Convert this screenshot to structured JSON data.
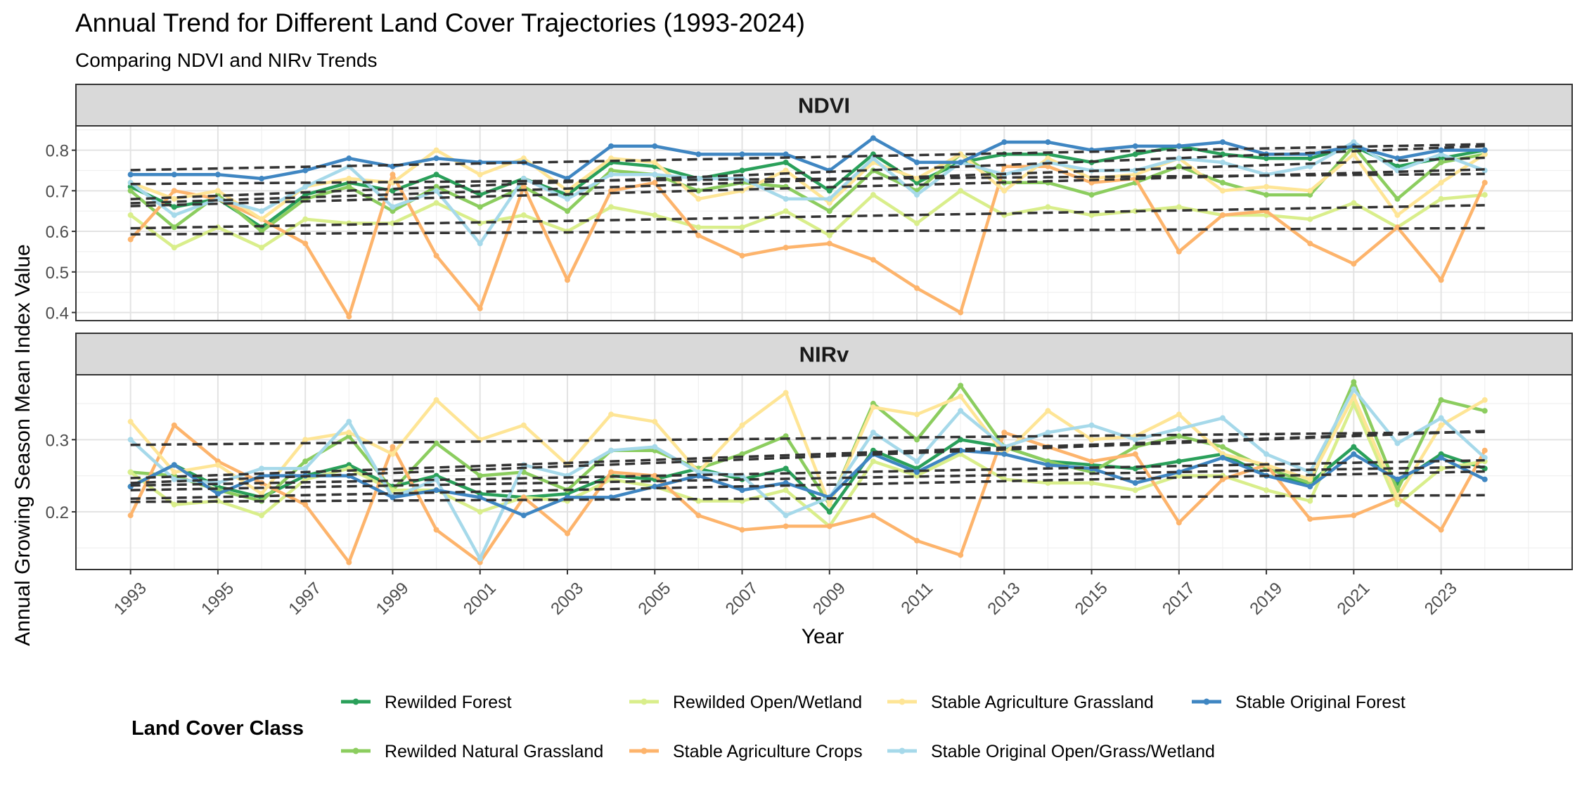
{
  "title": "Annual Trend for Different Land Cover Trajectories (1993-2024)",
  "subtitle": "Comparing NDVI and NIRv Trends",
  "xlabel": "Year",
  "ylabel": "Annual Growing Season Mean Index Value",
  "legend": {
    "title": "Land Cover Class",
    "position": "bottom"
  },
  "colors": {
    "Rewilded Forest": "#2aa05a",
    "Rewilded Natural Grassland": "#8ccd5f",
    "Rewilded Open/Wetland": "#d9ee8b",
    "Stable Agriculture Crops": "#fdb46c",
    "Stable Agriculture Grassland": "#fee596",
    "Stable Original Open/Grass/Wetland": "#a6d9ea",
    "Stable Original Forest": "#3f86c2",
    "trend": "#333333"
  },
  "chart_data": [
    {
      "type": "line",
      "panel": "NDVI",
      "x": [
        1993,
        1994,
        1995,
        1996,
        1997,
        1998,
        1999,
        2000,
        2001,
        2002,
        2003,
        2004,
        2005,
        2006,
        2007,
        2008,
        2009,
        2010,
        2011,
        2012,
        2013,
        2014,
        2015,
        2016,
        2017,
        2018,
        2019,
        2020,
        2021,
        2022,
        2023,
        2024
      ],
      "x_ticks": [
        "1993",
        "1995",
        "1997",
        "1999",
        "2001",
        "2003",
        "2005",
        "2007",
        "2009",
        "2011",
        "2013",
        "2015",
        "2017",
        "2019",
        "2021",
        "2023"
      ],
      "ylim": [
        0.38,
        0.86
      ],
      "y_ticks": [
        "0.4",
        "0.5",
        "0.6",
        "0.7",
        "0.8"
      ],
      "trend_lines": "dashed linear fit per series",
      "series": [
        {
          "name": "Rewilded Forest",
          "values": [
            0.71,
            0.66,
            0.68,
            0.61,
            0.69,
            0.72,
            0.7,
            0.74,
            0.69,
            0.73,
            0.69,
            0.77,
            0.76,
            0.73,
            0.75,
            0.77,
            0.7,
            0.79,
            0.72,
            0.77,
            0.79,
            0.79,
            0.77,
            0.79,
            0.81,
            0.79,
            0.78,
            0.78,
            0.81,
            0.76,
            0.78,
            0.8
          ]
        },
        {
          "name": "Rewilded Natural Grassland",
          "values": [
            0.7,
            0.61,
            0.69,
            0.6,
            0.68,
            0.71,
            0.65,
            0.71,
            0.66,
            0.71,
            0.65,
            0.75,
            0.74,
            0.7,
            0.72,
            0.71,
            0.65,
            0.75,
            0.7,
            0.79,
            0.72,
            0.72,
            0.69,
            0.72,
            0.76,
            0.72,
            0.69,
            0.69,
            0.81,
            0.68,
            0.77,
            0.79
          ]
        },
        {
          "name": "Rewilded Open/Wetland",
          "values": [
            0.64,
            0.56,
            0.61,
            0.56,
            0.63,
            0.62,
            0.62,
            0.67,
            0.62,
            0.64,
            0.6,
            0.66,
            0.64,
            0.61,
            0.61,
            0.65,
            0.59,
            0.69,
            0.62,
            0.7,
            0.64,
            0.66,
            0.64,
            0.65,
            0.66,
            0.64,
            0.64,
            0.63,
            0.67,
            0.61,
            0.68,
            0.69
          ]
        },
        {
          "name": "Stable Agriculture Crops",
          "values": [
            0.58,
            0.7,
            0.68,
            0.63,
            0.57,
            0.39,
            0.74,
            0.54,
            0.41,
            0.71,
            0.48,
            0.7,
            0.72,
            0.59,
            0.54,
            0.56,
            0.57,
            0.53,
            0.46,
            0.4,
            0.76,
            0.76,
            0.72,
            0.73,
            0.55,
            0.64,
            0.65,
            0.57,
            0.52,
            0.61,
            0.48,
            0.72
          ]
        },
        {
          "name": "Stable Agriculture Grassland",
          "values": [
            0.72,
            0.68,
            0.7,
            0.63,
            0.71,
            0.73,
            0.72,
            0.8,
            0.74,
            0.78,
            0.7,
            0.78,
            0.77,
            0.68,
            0.7,
            0.75,
            0.67,
            0.77,
            0.73,
            0.79,
            0.7,
            0.78,
            0.73,
            0.74,
            0.78,
            0.7,
            0.71,
            0.7,
            0.79,
            0.64,
            0.72,
            0.79
          ]
        },
        {
          "name": "Stable Original Open/Grass/Wetland",
          "values": [
            0.72,
            0.64,
            0.68,
            0.65,
            0.71,
            0.76,
            0.66,
            0.7,
            0.57,
            0.73,
            0.68,
            0.74,
            0.74,
            0.73,
            0.73,
            0.68,
            0.68,
            0.78,
            0.69,
            0.77,
            0.74,
            0.77,
            0.75,
            0.75,
            0.78,
            0.77,
            0.74,
            0.76,
            0.82,
            0.75,
            0.79,
            0.75
          ]
        },
        {
          "name": "Stable Original Forest",
          "values": [
            0.74,
            0.74,
            0.74,
            0.73,
            0.75,
            0.78,
            0.76,
            0.78,
            0.77,
            0.77,
            0.73,
            0.81,
            0.81,
            0.79,
            0.79,
            0.79,
            0.75,
            0.83,
            0.77,
            0.77,
            0.82,
            0.82,
            0.8,
            0.81,
            0.81,
            0.82,
            0.79,
            0.79,
            0.81,
            0.78,
            0.8,
            0.8
          ]
        }
      ]
    },
    {
      "type": "line",
      "panel": "NIRv",
      "x": [
        1993,
        1994,
        1995,
        1996,
        1997,
        1998,
        1999,
        2000,
        2001,
        2002,
        2003,
        2004,
        2005,
        2006,
        2007,
        2008,
        2009,
        2010,
        2011,
        2012,
        2013,
        2014,
        2015,
        2016,
        2017,
        2018,
        2019,
        2020,
        2021,
        2022,
        2023,
        2024
      ],
      "x_ticks": [
        "1993",
        "1995",
        "1997",
        "1999",
        "2001",
        "2003",
        "2005",
        "2007",
        "2009",
        "2011",
        "2013",
        "2015",
        "2017",
        "2019",
        "2021",
        "2023"
      ],
      "ylim": [
        0.12,
        0.39
      ],
      "y_ticks": [
        "0.2",
        "0.3"
      ],
      "trend_lines": "dashed linear fit per series",
      "series": [
        {
          "name": "Rewilded Forest",
          "values": [
            0.235,
            0.265,
            0.235,
            0.22,
            0.25,
            0.265,
            0.235,
            0.25,
            0.225,
            0.22,
            0.225,
            0.25,
            0.245,
            0.26,
            0.245,
            0.26,
            0.2,
            0.285,
            0.26,
            0.3,
            0.29,
            0.27,
            0.265,
            0.26,
            0.27,
            0.28,
            0.25,
            0.24,
            0.29,
            0.24,
            0.28,
            0.26
          ]
        },
        {
          "name": "Rewilded Natural Grassland",
          "values": [
            0.255,
            0.25,
            0.23,
            0.215,
            0.27,
            0.305,
            0.23,
            0.295,
            0.25,
            0.255,
            0.23,
            0.285,
            0.285,
            0.26,
            0.28,
            0.305,
            0.21,
            0.35,
            0.3,
            0.375,
            0.29,
            0.27,
            0.255,
            0.29,
            0.305,
            0.29,
            0.26,
            0.24,
            0.38,
            0.23,
            0.355,
            0.34
          ]
        },
        {
          "name": "Rewilded Open/Wetland",
          "values": [
            0.255,
            0.21,
            0.215,
            0.195,
            0.245,
            0.26,
            0.23,
            0.23,
            0.2,
            0.22,
            0.215,
            0.245,
            0.235,
            0.215,
            0.215,
            0.23,
            0.18,
            0.27,
            0.25,
            0.28,
            0.245,
            0.24,
            0.24,
            0.23,
            0.25,
            0.25,
            0.23,
            0.215,
            0.35,
            0.21,
            0.26,
            0.27
          ]
        },
        {
          "name": "Stable Agriculture Crops",
          "values": [
            0.195,
            0.32,
            0.27,
            0.24,
            0.21,
            0.13,
            0.29,
            0.175,
            0.13,
            0.22,
            0.17,
            0.255,
            0.25,
            0.195,
            0.175,
            0.18,
            0.18,
            0.195,
            0.16,
            0.14,
            0.31,
            0.29,
            0.27,
            0.28,
            0.185,
            0.245,
            0.265,
            0.19,
            0.195,
            0.22,
            0.175,
            0.285
          ]
        },
        {
          "name": "Stable Agriculture Grassland",
          "values": [
            0.325,
            0.255,
            0.265,
            0.225,
            0.3,
            0.31,
            0.28,
            0.355,
            0.3,
            0.32,
            0.265,
            0.335,
            0.325,
            0.255,
            0.32,
            0.365,
            0.21,
            0.345,
            0.335,
            0.36,
            0.28,
            0.34,
            0.3,
            0.305,
            0.335,
            0.28,
            0.265,
            0.245,
            0.36,
            0.22,
            0.32,
            0.355
          ]
        },
        {
          "name": "Stable Original Open/Grass/Wetland",
          "values": [
            0.3,
            0.245,
            0.24,
            0.26,
            0.26,
            0.325,
            0.22,
            0.245,
            0.135,
            0.265,
            0.25,
            0.285,
            0.29,
            0.255,
            0.25,
            0.195,
            0.22,
            0.31,
            0.27,
            0.34,
            0.29,
            0.31,
            0.32,
            0.3,
            0.315,
            0.33,
            0.28,
            0.255,
            0.37,
            0.295,
            0.33,
            0.275
          ]
        },
        {
          "name": "Stable Original Forest",
          "values": [
            0.235,
            0.265,
            0.225,
            0.25,
            0.25,
            0.25,
            0.22,
            0.23,
            0.22,
            0.195,
            0.22,
            0.22,
            0.235,
            0.25,
            0.23,
            0.24,
            0.22,
            0.28,
            0.255,
            0.285,
            0.28,
            0.265,
            0.26,
            0.24,
            0.255,
            0.275,
            0.25,
            0.235,
            0.28,
            0.245,
            0.275,
            0.245
          ]
        }
      ]
    }
  ]
}
